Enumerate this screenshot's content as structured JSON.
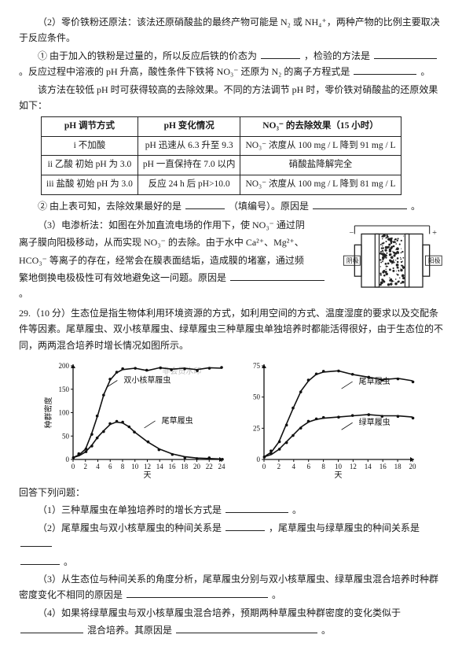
{
  "sec2": {
    "head": "（2）零价铁粉还原法：该法还原硝酸盐的最终产物可能是 N₂ 或 NH₄⁺，两种产物的比例主要取决于反应条件。",
    "p1a": "① 由于加入的铁粉是过量的，所以反应后铁的价态为",
    "p1b": "，检验的方法是",
    "p1c": "。反应过程中溶液的 pH 升高，酸性条件下铁将 NO₃⁻ 还原为 N₂ 的离子方程式是",
    "p1d": "。",
    "p2": "该方法在较低 pH 时可获得较高的去除效果。不同的方法调节 pH 时，零价铁对硝酸盐的还原效果如下："
  },
  "table": {
    "h1": "pH 调节方式",
    "h2": "pH 变化情况",
    "h3": "NO₃⁻ 的去除效果（15 小时）",
    "r1c1": "i 不加酸",
    "r1c2": "pH 迅速从 6.3 升至 9.3",
    "r1c3": "NO₃⁻ 浓度从 100 mg / L 降到 91 mg / L",
    "r2c1": "ii 乙酸 初始 pH 为 3.0",
    "r2c2": "pH 一直保持在 7.0 以内",
    "r2c3": "硝酸盐降解完全",
    "r3c1": "iii 盐酸 初始 pH 为 3.0",
    "r3c2": "反应 24 h 后 pH>10.0",
    "r3c3": "NO₃⁻ 浓度从 100 mg / L 降到 81 mg / L"
  },
  "sec2b": {
    "a": "② 由上表可知，去除效果最好的是",
    "b": "（填编号）。原因是",
    "c": "。"
  },
  "sec3": {
    "line1": "（3）电渗析法：如图在外加直流电场的作用下，使 NO₃⁻ 通过阴",
    "line2": "离子膜向阳极移动，从而实现 NO₃⁻ 的去除。由于水中 Ca²⁺、Mg²⁺、",
    "line3": "HCO₃⁻ 等离子的存在，经常会在膜表面结垢，造成膜的堵塞，通过频",
    "line4a": "繁地倒换电极极性可有效地避免这一问题。原因是",
    "line4b": "。"
  },
  "q29": {
    "head": "29.（10 分）生态位是指生物体利用环境资源的方式，如利用空间的方式、温度湿度的要求以及交配条件等因素。尾草履虫、双小核草履虫、绿草履虫三种草履虫单独培养时都能活得很好，由于生态位的不同，两两混合培养时增长情况如图所示。",
    "ans_head": "回答下列问题：",
    "q1a": "（1）三种草履虫在单独培养时的增长方式是",
    "q1b": "。",
    "q2a": "（2）尾草履虫与双小核草履虫的种间关系是",
    "q2b": "，尾草履虫与绿草履虫的种间关系是",
    "q2c": "。",
    "q3a": "（3）从生态位与种间关系的角度分析，尾草履虫分别与双小核草履虫、绿草履虫混合培养时种群密度变化不相同的原因是",
    "q3b": "。",
    "q4a": "（4）如果将绿草履虫与双小核草履虫混合培养，预期两种草履虫种群密度的变化类似于",
    "q4b": "混合培养。其原因是",
    "q4c": "。"
  },
  "electro": {
    "label_left": "阴极",
    "label_right": "阳极",
    "plus": "+",
    "minus": "−",
    "frame_color": "#222",
    "speckle_color": "#222"
  },
  "chart_a": {
    "y_max": 200,
    "y_ticks": [
      0,
      50,
      100,
      150,
      200
    ],
    "x_max": 24,
    "x_ticks": [
      0,
      2,
      4,
      6,
      8,
      10,
      12,
      14,
      16,
      18,
      20,
      22,
      24
    ],
    "y_label": "种群密度",
    "x_label": "天",
    "series": [
      {
        "name": "双小核草履虫",
        "label_xy": [
          80,
          28
        ],
        "color": "#111",
        "points": [
          [
            0,
            4
          ],
          [
            1,
            10
          ],
          [
            2,
            22
          ],
          [
            3,
            55
          ],
          [
            4,
            95
          ],
          [
            5,
            140
          ],
          [
            6,
            170
          ],
          [
            7,
            185
          ],
          [
            8,
            192
          ],
          [
            10,
            195
          ],
          [
            12,
            190
          ],
          [
            14,
            196
          ],
          [
            16,
            193
          ],
          [
            18,
            195
          ],
          [
            20,
            192
          ],
          [
            22,
            196
          ],
          [
            24,
            195
          ]
        ]
      },
      {
        "name": "尾草履虫",
        "label_xy": [
          140,
          95
        ],
        "color": "#111",
        "points": [
          [
            0,
            4
          ],
          [
            1,
            8
          ],
          [
            2,
            16
          ],
          [
            3,
            30
          ],
          [
            4,
            48
          ],
          [
            5,
            62
          ],
          [
            6,
            75
          ],
          [
            7,
            80
          ],
          [
            8,
            78
          ],
          [
            9,
            70
          ],
          [
            10,
            58
          ],
          [
            12,
            38
          ],
          [
            14,
            22
          ],
          [
            16,
            12
          ],
          [
            18,
            6
          ],
          [
            20,
            3
          ],
          [
            22,
            2
          ],
          [
            24,
            1
          ]
        ]
      }
    ]
  },
  "chart_b": {
    "y_max": 75,
    "y_ticks": [
      0,
      25,
      50,
      75
    ],
    "x_max": 20,
    "x_ticks": [
      0,
      2,
      4,
      6,
      8,
      10,
      12,
      14,
      16,
      18,
      20
    ],
    "x_label": "天",
    "series": [
      {
        "name": "尾草履虫",
        "label_xy": [
          150,
          30
        ],
        "color": "#111",
        "points": [
          [
            0,
            2
          ],
          [
            1,
            6
          ],
          [
            2,
            14
          ],
          [
            3,
            28
          ],
          [
            4,
            42
          ],
          [
            5,
            55
          ],
          [
            6,
            63
          ],
          [
            7,
            68
          ],
          [
            8,
            70
          ],
          [
            10,
            71
          ],
          [
            12,
            68
          ],
          [
            14,
            66
          ],
          [
            16,
            64
          ],
          [
            18,
            65
          ],
          [
            20,
            63
          ]
        ]
      },
      {
        "name": "绿草履虫",
        "label_xy": [
          150,
          98
        ],
        "color": "#111",
        "points": [
          [
            0,
            2
          ],
          [
            1,
            4
          ],
          [
            2,
            8
          ],
          [
            3,
            14
          ],
          [
            4,
            20
          ],
          [
            5,
            26
          ],
          [
            6,
            30
          ],
          [
            7,
            32
          ],
          [
            8,
            33
          ],
          [
            10,
            34
          ],
          [
            12,
            35
          ],
          [
            14,
            36
          ],
          [
            16,
            35
          ],
          [
            18,
            35
          ],
          [
            20,
            34
          ]
        ]
      }
    ]
  },
  "watermark": "非会员水印"
}
